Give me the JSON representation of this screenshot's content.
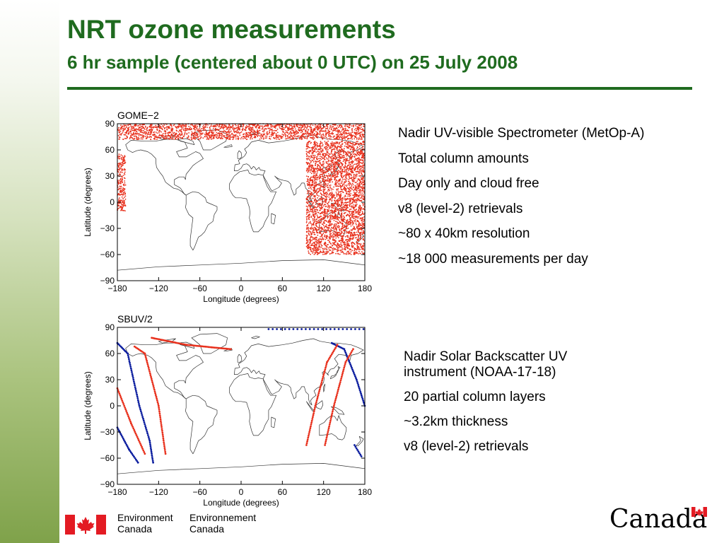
{
  "title": "NRT ozone measurements",
  "subtitle": "6 hr sample (centered about 0 UTC) on 25 July 2008",
  "colors": {
    "accent": "#1f6b1f",
    "orbit_red": "#e8301c",
    "orbit_blue": "#0a1c9e"
  },
  "gome_notes": [
    "Nadir UV-visible Spectrometer (MetOp-A)",
    "Total column amounts",
    "Day only and cloud free",
    "v8 (level-2) retrievals",
    "~80 x 40km resolution",
    "~18 000 measurements per day"
  ],
  "sbuv_notes": [
    "Nadir Solar Backscatter UV instrument (NOAA-17-18)",
    "20 partial column layers",
    "~3.2km thickness",
    "v8 (level-2) retrievals"
  ],
  "footer": {
    "dept_en_1": "Environment",
    "dept_en_2": "Canada",
    "dept_fr_1": "Environnement",
    "dept_fr_2": "Canada",
    "wordmark": "Canada"
  },
  "chart_data": [
    {
      "type": "scatter",
      "title": "GOME−2",
      "xlabel": "Longitude (degrees)",
      "ylabel": "Latitude (degrees)",
      "xlim": [
        -180,
        180
      ],
      "ylim": [
        -90,
        90
      ],
      "xticks": [
        -180,
        -120,
        -60,
        0,
        60,
        120,
        180
      ],
      "yticks": [
        90,
        60,
        30,
        0,
        -30,
        -60,
        -90
      ],
      "series": [
        {
          "color": "#e8301c",
          "regions": [
            {
              "lon": [
                -180,
                180
              ],
              "lat": [
                72,
                90
              ]
            },
            {
              "lon": [
                -180,
                -168
              ],
              "lat": [
                -10,
                55
              ]
            },
            {
              "lon": [
                95,
                180
              ],
              "lat": [
                -60,
                70
              ]
            }
          ]
        }
      ]
    },
    {
      "type": "scatter",
      "title": "SBUV/2",
      "xlabel": "Longitude (degrees)",
      "ylabel": "Latitude (degrees)",
      "xlim": [
        -180,
        180
      ],
      "ylim": [
        -90,
        90
      ],
      "xticks": [
        -180,
        -120,
        -60,
        0,
        60,
        120,
        180
      ],
      "yticks": [
        90,
        60,
        30,
        0,
        -30,
        -60,
        -90
      ],
      "series": [
        {
          "color": "#0a1c9e",
          "tracks": [
            {
              "lon": [
                -180,
                -165,
                -148,
                -133,
                -128
              ],
              "lat": [
                72,
                60,
                0,
                -40,
                -65
              ]
            },
            {
              "lon": [
                -180,
                -163,
                -150
              ],
              "lat": [
                -25,
                -50,
                -65
              ]
            },
            {
              "lon": [
                132,
                150,
                168,
                180
              ],
              "lat": [
                72,
                65,
                30,
                0
              ]
            },
            {
              "lon": [
                165,
                175
              ],
              "lat": [
                -45,
                -58
              ]
            }
          ],
          "top_row": {
            "lon": [
              40,
              180
            ],
            "lat": 88
          }
        },
        {
          "color": "#e8301c",
          "tracks": [
            {
              "lon": [
                -155,
                -140,
                -120,
                -110
              ],
              "lat": [
                68,
                60,
                0,
                -55
              ]
            },
            {
              "lon": [
                -180,
                -160,
                -140
              ],
              "lat": [
                20,
                -20,
                -55
              ]
            },
            {
              "lon": [
                -130,
                -80,
                -15
              ],
              "lat": [
                78,
                70,
                65
              ]
            },
            {
              "lon": [
                95,
                108,
                125,
                140
              ],
              "lat": [
                -45,
                0,
                50,
                70
              ]
            },
            {
              "lon": [
                122,
                135,
                152,
                163
              ],
              "lat": [
                -45,
                0,
                50,
                65
              ]
            }
          ]
        }
      ]
    }
  ]
}
